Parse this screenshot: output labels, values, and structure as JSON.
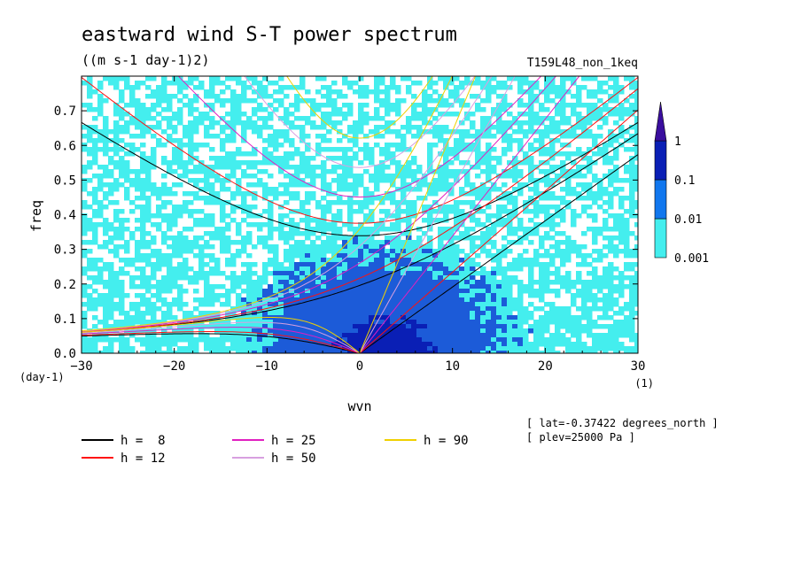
{
  "chart_data": {
    "type": "heatmap",
    "title": "eastward wind S-T power spectrum",
    "subtitle": "((m s-1 day-1)2)",
    "run_label": "T159L48_non_1keq",
    "xlabel": "wvn",
    "ylabel": "freq",
    "x_unit": "(1)",
    "y_unit": "(day-1)",
    "xlim": [
      -30,
      30
    ],
    "ylim": [
      0,
      0.8
    ],
    "x_ticks": [
      -30,
      -20,
      -10,
      0,
      10,
      20,
      30
    ],
    "y_ticks": [
      0.0,
      0.1,
      0.2,
      0.3,
      0.4,
      0.5,
      0.6,
      0.7
    ],
    "y_tick_labels": [
      "0.0",
      "0.1",
      "0.2",
      "0.3",
      "0.4",
      "0.5",
      "0.6",
      "0.7"
    ],
    "colorbar": {
      "levels": [
        0.001,
        0.01,
        0.1,
        1
      ],
      "labels": [
        "0.001",
        "0.01",
        "0.1",
        "1"
      ],
      "colors": [
        "#44eeee",
        "#1177ee",
        "#0a1fb5",
        "#3a0e9e"
      ]
    },
    "field_colors": {
      "low": "#44eeee",
      "mid": "#1c5bd8",
      "high": "#0a1fb5"
    },
    "dispersion_curves": [
      {
        "label": "h =  8",
        "h": 8,
        "color": "#000000"
      },
      {
        "label": "h = 12",
        "h": 12,
        "color": "#ff1010"
      },
      {
        "label": "h = 25",
        "h": 25,
        "color": "#e020c0"
      },
      {
        "label": "h = 50",
        "h": 50,
        "color": "#d8a0e0"
      },
      {
        "label": "h = 90",
        "h": 90,
        "color": "#f0d000"
      }
    ],
    "annotations": [
      "[ lat=-0.37422 degrees_north ]",
      "[ plev=25000 Pa ]"
    ]
  }
}
